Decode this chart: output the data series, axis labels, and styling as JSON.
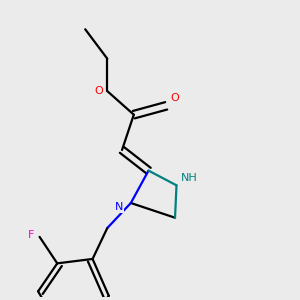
{
  "background_color": "#ebebeb",
  "bond_color": "#000000",
  "bond_width": 1.6,
  "colors": {
    "O": "#ff0000",
    "N_blue": "#0000ff",
    "N_teal": "#008080",
    "F": "#ff00cc",
    "C": "#000000"
  },
  "figsize": [
    3.0,
    3.0
  ],
  "dpi": 100
}
